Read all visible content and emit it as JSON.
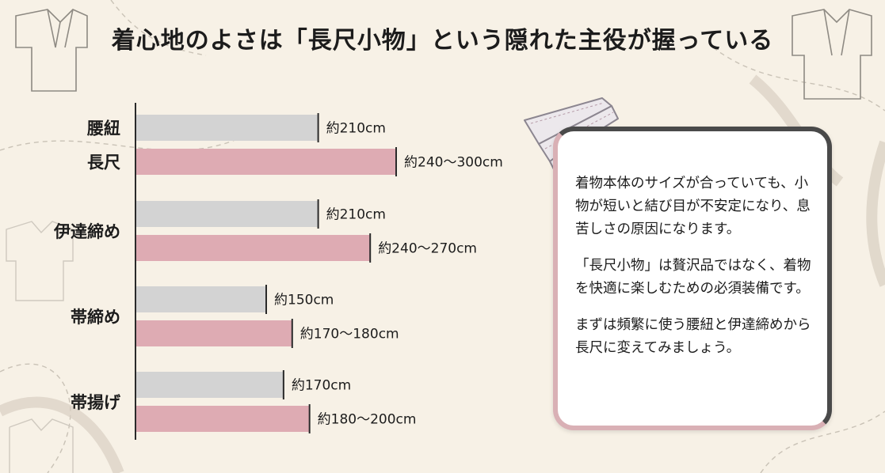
{
  "title": "着心地のよさは「長尺小物」という隠れた主役が握っている",
  "colors": {
    "standard": "#d3d3d3",
    "long": "#deabb3",
    "accent_border": "#d9b0b5",
    "dark_border": "#4a4a4a"
  },
  "chart_data": {
    "type": "bar",
    "orientation": "horizontal",
    "title": "",
    "xlabel": "",
    "ylabel": "",
    "xlim": [
      0,
      300
    ],
    "grid": false,
    "legend": "none",
    "groups": [
      {
        "category": "腰紐",
        "standard": {
          "value": 210,
          "label": "約210cm"
        },
        "long": {
          "value": 300,
          "label": "約240〜300cm",
          "range": [
            240,
            300
          ]
        }
      },
      {
        "category": "伊達締め",
        "standard": {
          "value": 210,
          "label": "約210cm"
        },
        "long": {
          "value": 270,
          "label": "約240〜270cm",
          "range": [
            240,
            270
          ]
        }
      },
      {
        "category": "帯締め",
        "standard": {
          "value": 150,
          "label": "約150cm"
        },
        "long": {
          "value": 180,
          "label": "約170〜180cm",
          "range": [
            170,
            180
          ]
        }
      },
      {
        "category": "帯揚げ",
        "standard": {
          "value": 170,
          "label": "約170cm"
        },
        "long": {
          "value": 200,
          "label": "約180〜200cm",
          "range": [
            180,
            200
          ]
        }
      }
    ],
    "long_label": "長尺"
  },
  "card": {
    "paragraphs": [
      "着物本体のサイズが合っていても、小物が短いと結び目が不安定になり、息苦しさの原因になります。",
      "「長尺小物」は贅沢品ではなく、着物を快適に楽しむための必須装備です。",
      "まずは頻繁に使う腰紐と伊達締めから長尺に変えてみましょう。"
    ]
  }
}
